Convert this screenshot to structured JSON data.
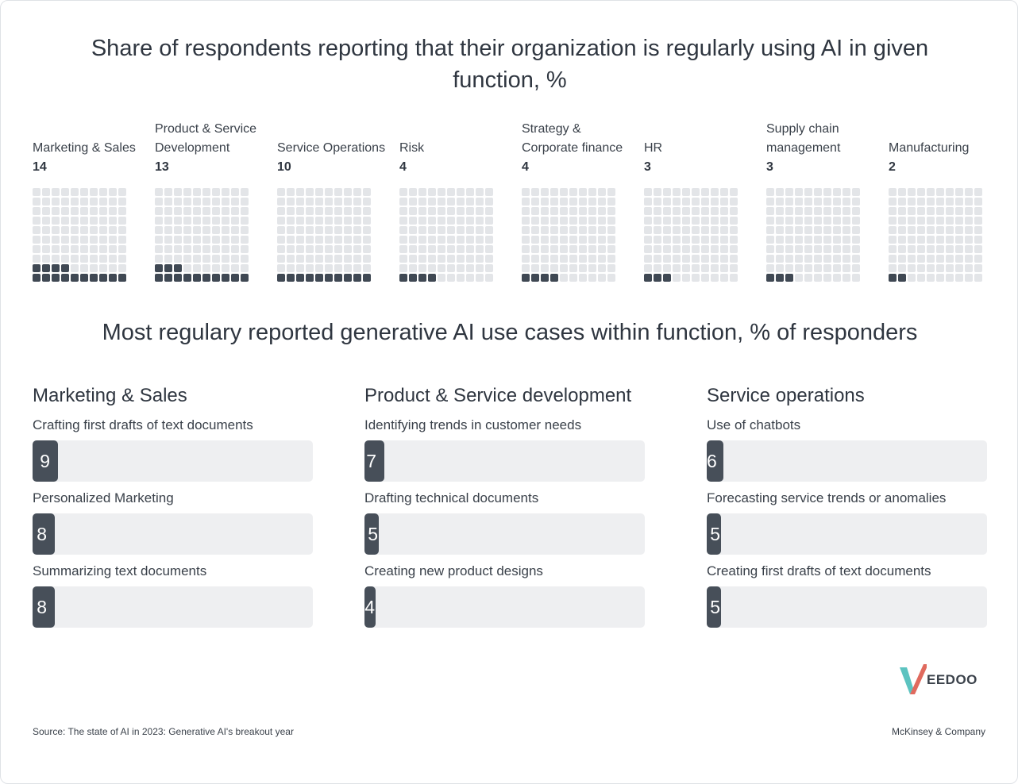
{
  "title": "Share of respondents reporting that their organization is regularly using AI in given function, %",
  "subtitle": "Most regulary reported generative AI use cases within function, % of responders",
  "chart_data": [
    {
      "type": "waffle",
      "title": "Share of respondents reporting that their organization is regularly using AI in given function, %",
      "unit": "%",
      "grid_total": 100,
      "categories": [
        "Marketing & Sales",
        "Product & Service Development",
        "Service Operations",
        "Risk",
        "Strategy & Corporate finance",
        "HR",
        "Supply chain management",
        "Manufacturing"
      ],
      "values": [
        14,
        13,
        10,
        4,
        4,
        3,
        3,
        2
      ]
    },
    {
      "type": "bar",
      "title": "Marketing & Sales",
      "categories": [
        "Crafting first drafts of text documents",
        "Personalized Marketing",
        "Summarizing text documents"
      ],
      "values": [
        9,
        8,
        8
      ],
      "xlim": [
        0,
        100
      ]
    },
    {
      "type": "bar",
      "title": "Product & Service development",
      "categories": [
        "Identifying trends in customer needs",
        "Drafting technical documents",
        "Creating new product designs"
      ],
      "values": [
        7,
        5,
        4
      ],
      "xlim": [
        0,
        100
      ]
    },
    {
      "type": "bar",
      "title": "Service operations",
      "categories": [
        "Use of chatbots",
        "Forecasting service trends or anomalies",
        "Creating first drafts of text documents"
      ],
      "values": [
        6,
        5,
        5
      ],
      "xlim": [
        0,
        100
      ]
    }
  ],
  "colors": {
    "filled": "#3f4853",
    "empty": "#e3e5e8",
    "bar": "#474f59",
    "track": "#eeeff1",
    "logo_teal": "#5cc3c0",
    "logo_red": "#e06a5e"
  },
  "logo": {
    "text": "EEDOO",
    "icon": "veedoo-v-logo-icon"
  },
  "footer": {
    "source": "Source: The state of AI in 2023: Generative AI's breakout year",
    "credit": "McKinsey & Company"
  }
}
